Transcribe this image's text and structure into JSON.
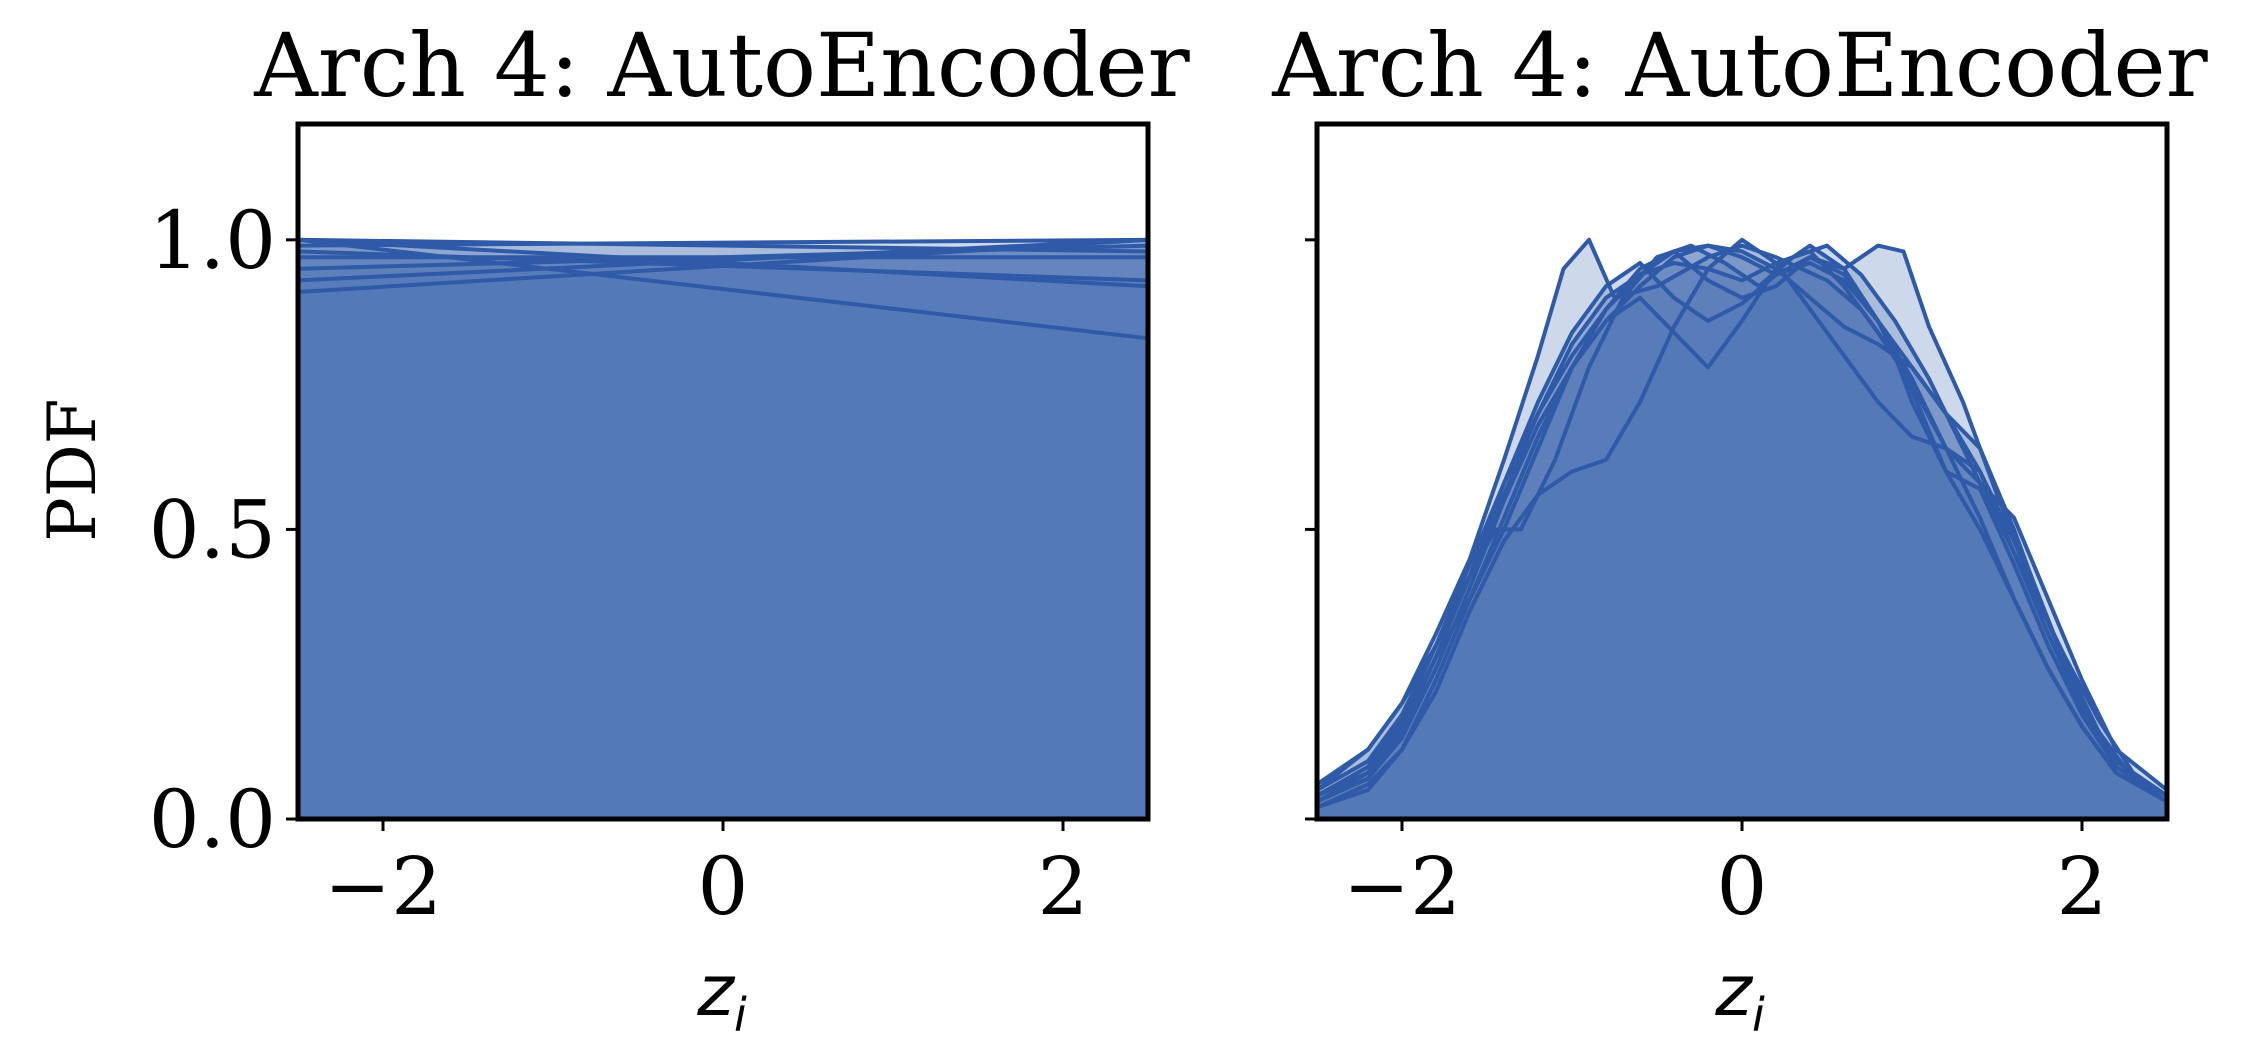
{
  "chart_data": [
    {
      "type": "area",
      "title": "Arch 4: AutoEncoder",
      "ylabel": "PDF",
      "xlabel": "z",
      "xlabel_subscript": "i",
      "xlim": [
        -2.5,
        2.5
      ],
      "ylim": [
        0,
        1.2
      ],
      "xticks": [
        -2,
        0,
        2
      ],
      "xtick_labels": [
        "−2",
        "0",
        "2"
      ],
      "yticks": [
        0.0,
        0.5,
        1.0
      ],
      "ytick_labels": [
        "0.0",
        "0.5",
        "1.0"
      ],
      "grid": false,
      "color": "#2f5aa8",
      "fill_color": "#4a72b4",
      "series": [
        {
          "x": [
            -2.5,
            2.5
          ],
          "y": [
            1.0,
            0.83
          ]
        },
        {
          "x": [
            -2.5,
            2.5
          ],
          "y": [
            0.91,
            1.0
          ]
        },
        {
          "x": [
            -2.5,
            2.5
          ],
          "y": [
            0.93,
            1.0
          ]
        },
        {
          "x": [
            -2.5,
            2.5
          ],
          "y": [
            0.95,
            0.99
          ]
        },
        {
          "x": [
            -2.5,
            2.5
          ],
          "y": [
            0.97,
            0.97
          ]
        },
        {
          "x": [
            -2.5,
            2.5
          ],
          "y": [
            0.98,
            0.93
          ]
        },
        {
          "x": [
            -2.5,
            2.5
          ],
          "y": [
            1.0,
            0.92
          ]
        },
        {
          "x": [
            -2.5,
            2.5
          ],
          "y": [
            0.99,
            1.0
          ]
        },
        {
          "x": [
            -2.5,
            2.5
          ],
          "y": [
            1.0,
            0.98
          ]
        }
      ]
    },
    {
      "type": "area",
      "title": "Arch 4: AutoEncoder",
      "xlabel": "z",
      "xlabel_subscript": "i",
      "xlim": [
        -2.5,
        2.5
      ],
      "ylim": [
        0,
        1.2
      ],
      "xticks": [
        -2,
        0,
        2
      ],
      "xtick_labels": [
        "−2",
        "0",
        "2"
      ],
      "yticks": [
        0.0,
        0.5,
        1.0
      ],
      "ytick_labels": [
        "",
        "",
        ""
      ],
      "grid": false,
      "color": "#2f5aa8",
      "fill_color": "#4a72b4",
      "series": [
        {
          "x": [
            -2.5,
            -2.2,
            -2.0,
            -1.8,
            -1.6,
            -1.4,
            -1.2,
            -1.05,
            -0.9,
            -0.75,
            -0.5,
            -0.2,
            0.0,
            0.2,
            0.5,
            0.7,
            0.9,
            1.0,
            1.2,
            1.4,
            1.6,
            1.8,
            2.0,
            2.2,
            2.5
          ],
          "y": [
            0.05,
            0.12,
            0.2,
            0.32,
            0.45,
            0.62,
            0.8,
            0.95,
            1.0,
            0.9,
            0.92,
            0.97,
            0.99,
            0.97,
            0.93,
            0.88,
            0.8,
            0.72,
            0.6,
            0.5,
            0.38,
            0.26,
            0.16,
            0.08,
            0.03
          ]
        },
        {
          "x": [
            -2.5,
            -2.2,
            -2.0,
            -1.8,
            -1.6,
            -1.4,
            -1.2,
            -1.0,
            -0.8,
            -0.6,
            -0.4,
            -0.2,
            0.0,
            0.2,
            0.4,
            0.6,
            0.8,
            0.95,
            1.1,
            1.3,
            1.5,
            1.7,
            1.9,
            2.1,
            2.3,
            2.5
          ],
          "y": [
            0.03,
            0.08,
            0.15,
            0.28,
            0.42,
            0.58,
            0.72,
            0.84,
            0.92,
            0.96,
            0.9,
            0.86,
            0.89,
            0.94,
            0.97,
            0.95,
            0.99,
            0.98,
            0.85,
            0.72,
            0.56,
            0.42,
            0.27,
            0.15,
            0.07,
            0.03
          ]
        },
        {
          "x": [
            -2.5,
            -2.2,
            -2.0,
            -1.8,
            -1.6,
            -1.4,
            -1.2,
            -1.0,
            -0.8,
            -0.6,
            -0.4,
            -0.2,
            0.0,
            0.2,
            0.4,
            0.6,
            0.8,
            1.0,
            1.2,
            1.4,
            1.6,
            1.8,
            2.0,
            2.2,
            2.5
          ],
          "y": [
            0.02,
            0.06,
            0.12,
            0.22,
            0.36,
            0.48,
            0.56,
            0.6,
            0.62,
            0.72,
            0.85,
            0.95,
            1.0,
            0.96,
            0.88,
            0.8,
            0.72,
            0.66,
            0.64,
            0.6,
            0.48,
            0.34,
            0.2,
            0.1,
            0.04
          ]
        },
        {
          "x": [
            -2.5,
            -2.2,
            -2.0,
            -1.8,
            -1.6,
            -1.45,
            -1.3,
            -1.1,
            -0.9,
            -0.7,
            -0.5,
            -0.3,
            -0.1,
            0.1,
            0.3,
            0.5,
            0.7,
            0.9,
            1.1,
            1.3,
            1.5,
            1.7,
            1.9,
            2.1,
            2.3,
            2.5
          ],
          "y": [
            0.05,
            0.1,
            0.18,
            0.3,
            0.42,
            0.5,
            0.5,
            0.62,
            0.78,
            0.9,
            0.97,
            0.99,
            0.96,
            0.92,
            0.97,
            0.99,
            0.94,
            0.86,
            0.76,
            0.64,
            0.52,
            0.4,
            0.28,
            0.17,
            0.08,
            0.04
          ]
        },
        {
          "x": [
            -2.5,
            -2.2,
            -2.0,
            -1.8,
            -1.6,
            -1.4,
            -1.2,
            -1.0,
            -0.8,
            -0.6,
            -0.4,
            -0.2,
            0.0,
            0.2,
            0.4,
            0.6,
            0.8,
            1.0,
            1.2,
            1.4,
            1.6,
            1.8,
            2.0,
            2.2,
            2.5
          ],
          "y": [
            0.04,
            0.09,
            0.17,
            0.3,
            0.44,
            0.58,
            0.7,
            0.8,
            0.88,
            0.94,
            0.98,
            0.99,
            0.97,
            0.94,
            0.96,
            0.93,
            0.86,
            0.76,
            0.64,
            0.52,
            0.38,
            0.26,
            0.16,
            0.08,
            0.03
          ]
        },
        {
          "x": [
            -2.5,
            -2.2,
            -2.0,
            -1.8,
            -1.6,
            -1.4,
            -1.2,
            -1.0,
            -0.8,
            -0.6,
            -0.4,
            -0.2,
            0.0,
            0.2,
            0.4,
            0.6,
            0.8,
            1.0,
            1.2,
            1.4,
            1.6,
            1.8,
            2.0,
            2.2,
            2.5
          ],
          "y": [
            0.06,
            0.12,
            0.2,
            0.3,
            0.42,
            0.56,
            0.7,
            0.82,
            0.9,
            0.94,
            0.96,
            0.95,
            0.93,
            0.96,
            0.98,
            0.92,
            0.84,
            0.75,
            0.64,
            0.58,
            0.52,
            0.38,
            0.24,
            0.12,
            0.05
          ]
        },
        {
          "x": [
            -2.5,
            -2.2,
            -2.0,
            -1.8,
            -1.6,
            -1.4,
            -1.2,
            -1.0,
            -0.8,
            -0.6,
            -0.4,
            -0.2,
            0.0,
            0.2,
            0.4,
            0.6,
            0.8,
            1.0,
            1.2,
            1.4,
            1.6,
            1.8,
            2.0,
            2.2,
            2.5
          ],
          "y": [
            0.03,
            0.07,
            0.14,
            0.26,
            0.4,
            0.55,
            0.68,
            0.78,
            0.86,
            0.9,
            0.84,
            0.78,
            0.86,
            0.95,
            0.99,
            0.95,
            0.86,
            0.78,
            0.7,
            0.64,
            0.5,
            0.34,
            0.2,
            0.1,
            0.04
          ]
        },
        {
          "x": [
            -2.5,
            -2.2,
            -2.0,
            -1.8,
            -1.6,
            -1.4,
            -1.2,
            -1.0,
            -0.8,
            -0.6,
            -0.4,
            -0.2,
            0.0,
            0.2,
            0.4,
            0.6,
            0.8,
            1.0,
            1.2,
            1.4,
            1.6,
            1.8,
            2.0,
            2.2,
            2.5
          ],
          "y": [
            0.04,
            0.08,
            0.16,
            0.28,
            0.38,
            0.5,
            0.64,
            0.78,
            0.88,
            0.95,
            0.98,
            0.93,
            0.9,
            0.92,
            0.97,
            0.94,
            0.86,
            0.74,
            0.6,
            0.57,
            0.44,
            0.3,
            0.18,
            0.09,
            0.04
          ]
        },
        {
          "x": [
            -2.5,
            -2.2,
            -2.0,
            -1.8,
            -1.6,
            -1.4,
            -1.2,
            -1.0,
            -0.8,
            -0.6,
            -0.4,
            -0.2,
            0.0,
            0.2,
            0.4,
            0.6,
            0.8,
            1.0,
            1.2,
            1.4,
            1.6,
            1.8,
            2.0,
            2.2,
            2.5
          ],
          "y": [
            0.02,
            0.05,
            0.12,
            0.24,
            0.38,
            0.52,
            0.66,
            0.78,
            0.86,
            0.92,
            0.97,
            0.99,
            0.98,
            0.95,
            0.9,
            0.85,
            0.82,
            0.78,
            0.7,
            0.6,
            0.46,
            0.32,
            0.19,
            0.09,
            0.03
          ]
        }
      ]
    }
  ]
}
